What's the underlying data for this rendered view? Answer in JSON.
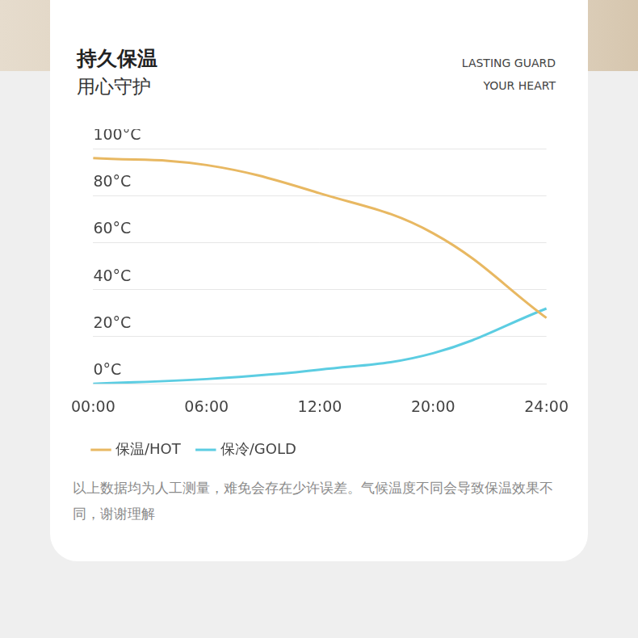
{
  "chart_data": {
    "type": "line",
    "title": "持久保温",
    "subtitle": "用心守护",
    "title_en": [
      "LASTING GUARD",
      "YOUR HEART"
    ],
    "footnote": "以上数据均为人工测量，难免会存在少许误差。气候温度不同会导致保温效果不同，谢谢理解",
    "categories": [
      "00:00",
      "06:00",
      "12:00",
      "20:00",
      "24:00"
    ],
    "series": [
      {
        "name": "保温/HOT",
        "color": "#e8b862",
        "values": [
          96,
          93,
          81,
          64,
          28
        ]
      },
      {
        "name": "保冷/GOLD",
        "color": "#5ccde2",
        "values": [
          0,
          2,
          6,
          13,
          32
        ]
      }
    ],
    "ylim": [
      0,
      100
    ],
    "yticks": [
      {
        "value": 0,
        "label": "0°C"
      },
      {
        "value": 20,
        "label": "20°C"
      },
      {
        "value": 40,
        "label": "40°C"
      },
      {
        "value": 60,
        "label": "60°C"
      },
      {
        "value": 80,
        "label": "80°C"
      },
      {
        "value": 100,
        "label": "100°C"
      }
    ],
    "grid": true,
    "legend": "bottom"
  }
}
